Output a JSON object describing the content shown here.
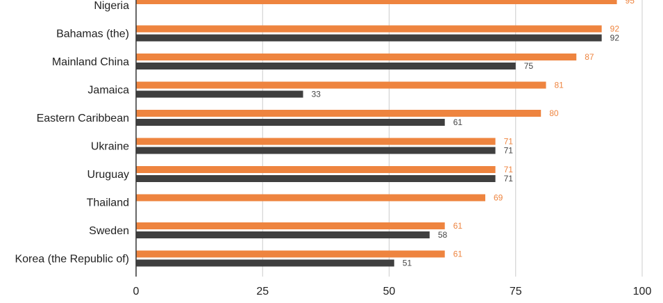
{
  "chart_data": {
    "type": "bar",
    "orientation": "horizontal",
    "categories": [
      "Nigeria",
      "Bahamas (the)",
      "Mainland China",
      "Jamaica",
      "Eastern Caribbean",
      "Ukraine",
      "Uruguay",
      "Thailand",
      "Sweden",
      "Korea (the Republic of)"
    ],
    "series": [
      {
        "color": "#ee843f",
        "values": [
          95,
          92,
          87,
          81,
          80,
          71,
          71,
          69,
          61,
          61
        ]
      },
      {
        "color": "#3f3f3f",
        "values": [
          null,
          92,
          75,
          33,
          61,
          71,
          71,
          null,
          58,
          51
        ]
      }
    ],
    "xlim": [
      0,
      100
    ],
    "xticks": [
      "0",
      "25",
      "50",
      "75",
      "100"
    ],
    "grid": true,
    "data_labels": true
  }
}
